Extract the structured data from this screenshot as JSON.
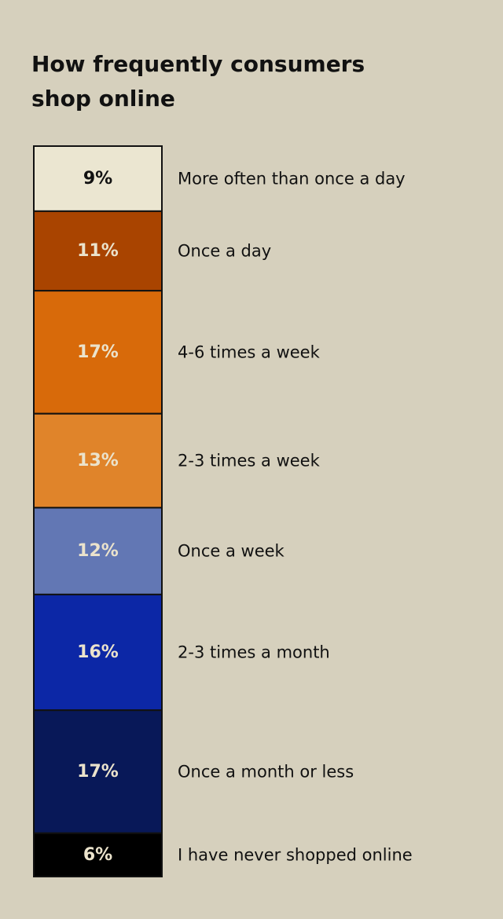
{
  "title_lines": [
    "How frequently consumers",
    "shop online"
  ],
  "chart_data": {
    "type": "bar",
    "subtype": "stacked-100-percent",
    "title": "How frequently consumers shop online",
    "unit": "%",
    "categories": [
      "More often than once a day",
      "Once a day",
      "4-6 times a week",
      "2-3 times a week",
      "Once a week",
      "2-3 times a month",
      "Once a month or less",
      "I have never shopped online"
    ],
    "values": [
      9,
      11,
      17,
      13,
      12,
      16,
      17,
      6
    ],
    "value_labels": [
      "9%",
      "11%",
      "17%",
      "13%",
      "12%",
      "16%",
      "17%",
      "6%"
    ],
    "colors": [
      "#ebe6d1",
      "#a94400",
      "#d86a0a",
      "#e0842a",
      "#6277b4",
      "#0c27a6",
      "#081858",
      "#000000"
    ],
    "value_label_colors": [
      "#111111",
      "#ebe3cc",
      "#ebe3cc",
      "#ebe3cc",
      "#ebe3cc",
      "#ebe3cc",
      "#ebe3cc",
      "#ebe3cc"
    ],
    "legend": "labels-right"
  }
}
